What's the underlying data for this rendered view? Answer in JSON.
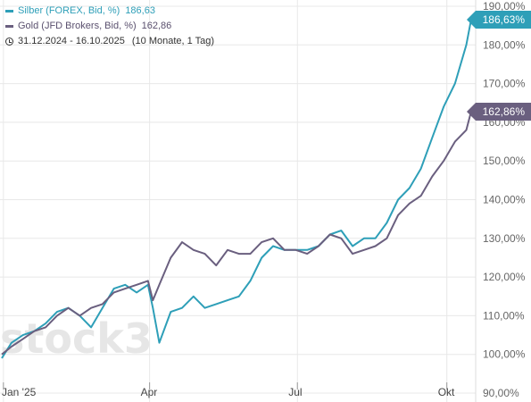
{
  "legend": {
    "series": [
      {
        "label": "Silber (FOREX, Bid, %)",
        "value": "186,63",
        "color": "#2e9fb8"
      },
      {
        "label": "Gold (JFD Brokers, Bid, %)",
        "value": "162,86",
        "color": "#6a5f7f"
      }
    ],
    "range": "31.12.2024 - 16.10.2025",
    "range_extra": "(10 Monate, 1 Tag)"
  },
  "badges": {
    "silver": "186,63%",
    "gold": "162,86%"
  },
  "watermark": "stock3",
  "chart_data": {
    "type": "line",
    "title": "",
    "xlabel": "",
    "ylabel": "",
    "ylim": [
      90,
      190
    ],
    "y_ticks": [
      90,
      100,
      110,
      120,
      130,
      140,
      150,
      160,
      170,
      180,
      190
    ],
    "y_tick_labels": [
      "90,00%",
      "100,00%",
      "110,00%",
      "120,00%",
      "130,00%",
      "140,00%",
      "150,00%",
      "160,00%",
      "170,00%",
      "180,00%",
      "190,00%"
    ],
    "x_range": [
      "2024-12-31",
      "2025-10-16"
    ],
    "x_ticks": [
      "2025-01-01",
      "2025-04-01",
      "2025-07-01",
      "2025-10-01"
    ],
    "x_tick_labels": [
      "Jan '25",
      "Apr",
      "Jul",
      "Okt"
    ],
    "grid": true,
    "legend_position": "top-left",
    "series": [
      {
        "name": "Silber (FOREX, Bid, %)",
        "color": "#2e9fb8",
        "x": [
          "2024-12-31",
          "2025-01-06",
          "2025-01-13",
          "2025-01-20",
          "2025-01-27",
          "2025-02-03",
          "2025-02-10",
          "2025-02-17",
          "2025-02-24",
          "2025-03-03",
          "2025-03-10",
          "2025-03-17",
          "2025-03-24",
          "2025-03-31",
          "2025-04-03",
          "2025-04-07",
          "2025-04-14",
          "2025-04-21",
          "2025-04-28",
          "2025-05-05",
          "2025-05-12",
          "2025-05-19",
          "2025-05-26",
          "2025-06-02",
          "2025-06-09",
          "2025-06-16",
          "2025-06-23",
          "2025-06-30",
          "2025-07-07",
          "2025-07-14",
          "2025-07-21",
          "2025-07-28",
          "2025-08-04",
          "2025-08-11",
          "2025-08-18",
          "2025-08-25",
          "2025-09-01",
          "2025-09-08",
          "2025-09-15",
          "2025-09-22",
          "2025-09-29",
          "2025-10-06",
          "2025-10-13",
          "2025-10-16"
        ],
        "y": [
          99,
          103,
          105,
          106,
          108,
          111,
          112,
          110,
          107,
          112,
          117,
          118,
          116,
          118,
          112,
          103,
          111,
          112,
          115,
          112,
          113,
          114,
          115,
          119,
          125,
          128,
          127,
          127,
          127,
          128,
          131,
          132,
          128,
          130,
          130,
          134,
          140,
          143,
          148,
          156,
          164,
          170,
          180,
          186.63
        ]
      },
      {
        "name": "Gold (JFD Brokers, Bid, %)",
        "color": "#6a5f7f",
        "x": [
          "2024-12-31",
          "2025-01-06",
          "2025-01-13",
          "2025-01-20",
          "2025-01-27",
          "2025-02-03",
          "2025-02-10",
          "2025-02-17",
          "2025-02-24",
          "2025-03-03",
          "2025-03-10",
          "2025-03-17",
          "2025-03-24",
          "2025-03-31",
          "2025-04-03",
          "2025-04-07",
          "2025-04-14",
          "2025-04-21",
          "2025-04-28",
          "2025-05-05",
          "2025-05-12",
          "2025-05-19",
          "2025-05-26",
          "2025-06-02",
          "2025-06-09",
          "2025-06-16",
          "2025-06-23",
          "2025-06-30",
          "2025-07-07",
          "2025-07-14",
          "2025-07-21",
          "2025-07-28",
          "2025-08-04",
          "2025-08-11",
          "2025-08-18",
          "2025-08-25",
          "2025-09-01",
          "2025-09-08",
          "2025-09-15",
          "2025-09-22",
          "2025-09-29",
          "2025-10-06",
          "2025-10-13",
          "2025-10-16"
        ],
        "y": [
          100,
          102,
          104,
          106,
          107,
          110,
          112,
          110,
          112,
          113,
          116,
          117,
          118,
          119,
          114,
          118,
          125,
          129,
          127,
          126,
          123,
          127,
          126,
          126,
          129,
          130,
          127,
          127,
          126,
          128,
          131,
          130,
          126,
          127,
          128,
          130,
          136,
          139,
          141,
          146,
          150,
          155,
          158,
          162.86
        ]
      }
    ]
  }
}
